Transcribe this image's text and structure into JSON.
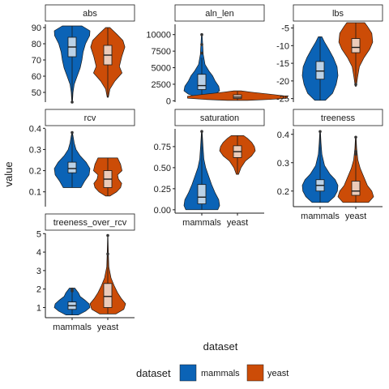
{
  "chart_data": {
    "type": "violin",
    "x_title": "dataset",
    "y_title": "value",
    "categories": [
      "mammals",
      "yeast"
    ],
    "colors": {
      "mammals": "#0b63b6",
      "yeast": "#cc4c07",
      "box": "#f5f5f5",
      "strip": "#ffffff",
      "text": "#1a1a1a"
    },
    "legend": {
      "title": "dataset",
      "position": "bottom",
      "entries": [
        "mammals",
        "yeast"
      ]
    },
    "panels": [
      {
        "name": "abs",
        "ylim": [
          44,
          93
        ],
        "ticks": [
          50,
          60,
          70,
          80,
          90
        ],
        "tick_labels": [
          "50",
          "60",
          "70",
          "80",
          "90"
        ],
        "series": [
          {
            "dataset": "mammals",
            "min": 44,
            "q1": 72,
            "median": 78,
            "q3": 84,
            "max": 91,
            "outliers": [
              44
            ],
            "density": [
              [
                44,
                0.02
              ],
              [
                50,
                0.05
              ],
              [
                55,
                0.12
              ],
              [
                60,
                0.28
              ],
              [
                65,
                0.45
              ],
              [
                70,
                0.55
              ],
              [
                75,
                0.62
              ],
              [
                80,
                0.75
              ],
              [
                85,
                0.98
              ],
              [
                88,
                1.0
              ],
              [
                91,
                0.55
              ]
            ]
          },
          {
            "dataset": "yeast",
            "min": 47,
            "q1": 67,
            "median": 73,
            "q3": 79,
            "max": 90,
            "outliers": [],
            "density": [
              [
                47,
                0.03
              ],
              [
                52,
                0.12
              ],
              [
                57,
                0.4
              ],
              [
                62,
                0.8
              ],
              [
                66,
                0.65
              ],
              [
                72,
                0.78
              ],
              [
                78,
                0.96
              ],
              [
                82,
                0.85
              ],
              [
                86,
                0.5
              ],
              [
                90,
                0.12
              ]
            ]
          }
        ]
      },
      {
        "name": "aln_len",
        "ylim": [
          -200,
          11800
        ],
        "ticks": [
          0,
          2500,
          5000,
          7500,
          10000
        ],
        "tick_labels": [
          "0",
          "2500",
          "5000",
          "7500",
          "10000"
        ],
        "series": [
          {
            "dataset": "mammals",
            "min": 500,
            "q1": 1700,
            "median": 2300,
            "q3": 4000,
            "max": 6500,
            "outliers": [
              7200,
              8500,
              10000
            ],
            "density": [
              [
                500,
                0.2
              ],
              [
                1000,
                0.75
              ],
              [
                1500,
                1.0
              ],
              [
                2200,
                0.95
              ],
              [
                3000,
                0.75
              ],
              [
                3800,
                0.6
              ],
              [
                4500,
                0.4
              ],
              [
                5500,
                0.18
              ],
              [
                7000,
                0.08
              ],
              [
                8500,
                0.05
              ],
              [
                10000,
                0.02
              ]
            ]
          },
          {
            "dataset": "yeast",
            "min": 100,
            "q1": 350,
            "median": 550,
            "q3": 900,
            "max": 1400,
            "outliers": [],
            "density": [
              [
                60,
                0.55
              ],
              [
                200,
                1.8
              ],
              [
                400,
                2.8
              ],
              [
                700,
                2.8
              ],
              [
                1000,
                1.8
              ],
              [
                1300,
                0.8
              ],
              [
                1500,
                0.2
              ]
            ]
          }
        ]
      },
      {
        "name": "lbs",
        "ylim": [
          -26,
          -3.5
        ],
        "ticks": [
          -25,
          -20,
          -15,
          -10,
          -5
        ],
        "tick_labels": [
          "-25",
          "-20",
          "-15",
          "-10",
          "-5"
        ],
        "series": [
          {
            "dataset": "mammals",
            "min": -25.5,
            "q1": -19.5,
            "median": -17.2,
            "q3": -14.5,
            "max": -7.5,
            "outliers": [],
            "density": [
              [
                -25.5,
                0.3
              ],
              [
                -23.5,
                0.7
              ],
              [
                -21,
                0.9
              ],
              [
                -18.5,
                1.0
              ],
              [
                -16,
                0.95
              ],
              [
                -13.5,
                0.75
              ],
              [
                -11,
                0.48
              ],
              [
                -9,
                0.25
              ],
              [
                -7.5,
                0.1
              ]
            ]
          },
          {
            "dataset": "yeast",
            "min": -21.5,
            "q1": -12,
            "median": -10.5,
            "q3": -8,
            "max": -3.5,
            "outliers": [
              -21
            ],
            "density": [
              [
                -21.5,
                0.03
              ],
              [
                -19,
                0.1
              ],
              [
                -16,
                0.2
              ],
              [
                -13.5,
                0.45
              ],
              [
                -11,
                0.78
              ],
              [
                -9,
                0.95
              ],
              [
                -6.5,
                0.9
              ],
              [
                -4.5,
                0.65
              ],
              [
                -3.5,
                0.5
              ]
            ]
          }
        ]
      },
      {
        "name": "rcv",
        "ylim": [
          0.03,
          0.405
        ],
        "ticks": [
          0.1,
          0.2,
          0.3,
          0.4
        ],
        "tick_labels": [
          "0.1",
          "0.2",
          "0.3",
          "0.4"
        ],
        "series": [
          {
            "dataset": "mammals",
            "min": 0.12,
            "q1": 0.19,
            "median": 0.21,
            "q3": 0.24,
            "max": 0.38,
            "outliers": [
              0.38
            ],
            "density": [
              [
                0.12,
                0.5
              ],
              [
                0.15,
                0.7
              ],
              [
                0.18,
                0.95
              ],
              [
                0.21,
                1.0
              ],
              [
                0.24,
                0.78
              ],
              [
                0.27,
                0.45
              ],
              [
                0.3,
                0.22
              ],
              [
                0.33,
                0.12
              ],
              [
                0.36,
                0.06
              ],
              [
                0.38,
                0.02
              ]
            ]
          },
          {
            "dataset": "yeast",
            "min": 0.08,
            "q1": 0.12,
            "median": 0.16,
            "q3": 0.2,
            "max": 0.26,
            "outliers": [],
            "density": [
              [
                0.08,
                0.12
              ],
              [
                0.1,
                0.5
              ],
              [
                0.12,
                0.72
              ],
              [
                0.14,
                0.78
              ],
              [
                0.16,
                0.6
              ],
              [
                0.18,
                0.55
              ],
              [
                0.2,
                0.8
              ],
              [
                0.23,
                0.72
              ],
              [
                0.26,
                0.55
              ]
            ]
          }
        ]
      },
      {
        "name": "saturation",
        "ylim": [
          -0.04,
          0.98
        ],
        "ticks": [
          0.0,
          0.25,
          0.5,
          0.75
        ],
        "tick_labels": [
          "0.00",
          "0.25",
          "0.50",
          "0.75"
        ],
        "series": [
          {
            "dataset": "mammals",
            "min": 0.0,
            "q1": 0.07,
            "median": 0.15,
            "q3": 0.3,
            "max": 0.93,
            "outliers": [
              0.93
            ],
            "density": [
              [
                0.0,
                0.9
              ],
              [
                0.05,
                1.0
              ],
              [
                0.12,
                0.95
              ],
              [
                0.2,
                0.75
              ],
              [
                0.3,
                0.55
              ],
              [
                0.4,
                0.38
              ],
              [
                0.5,
                0.22
              ],
              [
                0.6,
                0.12
              ],
              [
                0.75,
                0.07
              ],
              [
                0.93,
                0.02
              ]
            ]
          },
          {
            "dataset": "yeast",
            "min": 0.42,
            "q1": 0.62,
            "median": 0.69,
            "q3": 0.76,
            "max": 0.88,
            "outliers": [],
            "density": [
              [
                0.42,
                0.06
              ],
              [
                0.5,
                0.2
              ],
              [
                0.58,
                0.45
              ],
              [
                0.64,
                0.8
              ],
              [
                0.7,
                1.0
              ],
              [
                0.75,
                0.95
              ],
              [
                0.8,
                0.8
              ],
              [
                0.85,
                0.55
              ],
              [
                0.88,
                0.35
              ]
            ]
          }
        ]
      },
      {
        "name": "treeness",
        "ylim": [
          0.145,
          0.425
        ],
        "ticks": [
          0.2,
          0.3,
          0.4
        ],
        "tick_labels": [
          "0.2",
          "0.3",
          "0.4"
        ],
        "series": [
          {
            "dataset": "mammals",
            "min": 0.16,
            "q1": 0.2,
            "median": 0.22,
            "q3": 0.24,
            "max": 0.41,
            "outliers": [
              0.41
            ],
            "density": [
              [
                0.16,
                0.45
              ],
              [
                0.18,
                0.8
              ],
              [
                0.2,
                0.97
              ],
              [
                0.22,
                1.0
              ],
              [
                0.24,
                0.85
              ],
              [
                0.26,
                0.55
              ],
              [
                0.29,
                0.25
              ],
              [
                0.33,
                0.1
              ],
              [
                0.37,
                0.05
              ],
              [
                0.41,
                0.02
              ]
            ]
          },
          {
            "dataset": "yeast",
            "min": 0.16,
            "q1": 0.185,
            "median": 0.2,
            "q3": 0.235,
            "max": 0.39,
            "outliers": [
              0.33,
              0.34,
              0.39
            ],
            "density": [
              [
                0.16,
                0.72
              ],
              [
                0.18,
                1.0
              ],
              [
                0.2,
                0.9
              ],
              [
                0.22,
                0.65
              ],
              [
                0.25,
                0.45
              ],
              [
                0.28,
                0.25
              ],
              [
                0.31,
                0.12
              ],
              [
                0.35,
                0.05
              ],
              [
                0.39,
                0.02
              ]
            ]
          }
        ]
      },
      {
        "name": "treeness_over_rcv",
        "ylim": [
          0.45,
          5.1
        ],
        "ticks": [
          1,
          2,
          3,
          4,
          5
        ],
        "tick_labels": [
          "1",
          "2",
          "3",
          "4",
          "5"
        ],
        "series": [
          {
            "dataset": "mammals",
            "min": 0.6,
            "q1": 0.9,
            "median": 1.1,
            "q3": 1.3,
            "max": 2.05,
            "outliers": [
              1.9,
              2.0
            ],
            "density": [
              [
                0.6,
                0.35
              ],
              [
                0.8,
                0.75
              ],
              [
                1.0,
                1.0
              ],
              [
                1.2,
                0.95
              ],
              [
                1.4,
                0.72
              ],
              [
                1.6,
                0.45
              ],
              [
                1.8,
                0.35
              ],
              [
                2.05,
                0.15
              ]
            ]
          },
          {
            "dataset": "yeast",
            "min": 0.65,
            "q1": 1.0,
            "median": 1.6,
            "q3": 2.3,
            "max": 4.9,
            "outliers": [
              3.9,
              4.9
            ],
            "density": [
              [
                0.65,
                0.45
              ],
              [
                0.9,
                0.9
              ],
              [
                1.2,
                1.0
              ],
              [
                1.5,
                0.75
              ],
              [
                1.8,
                0.55
              ],
              [
                2.2,
                0.35
              ],
              [
                2.6,
                0.18
              ],
              [
                3.2,
                0.06
              ],
              [
                4.0,
                0.03
              ],
              [
                4.9,
                0.01
              ]
            ]
          }
        ]
      }
    ]
  }
}
